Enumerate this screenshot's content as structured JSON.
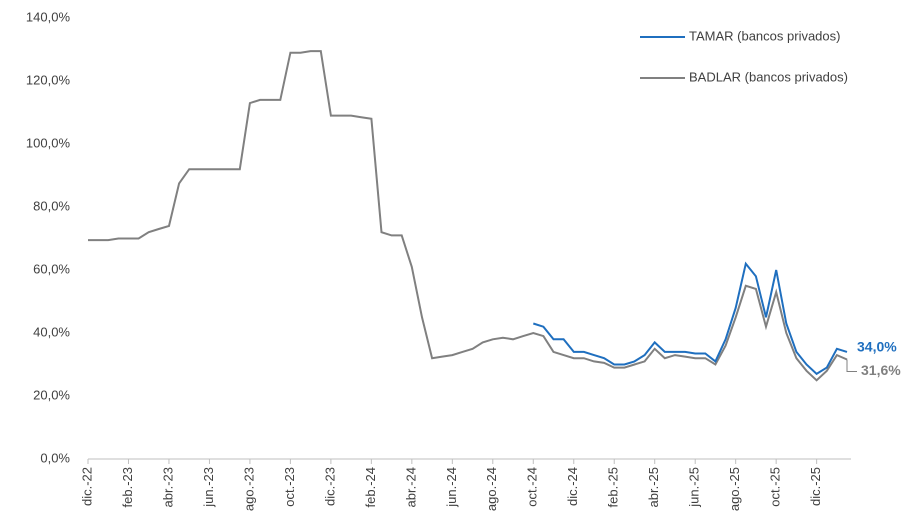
{
  "chart_data": {
    "type": "line",
    "categories": [
      "dic.-22",
      null,
      null,
      null,
      "feb.-23",
      null,
      null,
      null,
      "abr.-23",
      null,
      null,
      null,
      "jun.-23",
      null,
      null,
      null,
      "ago.-23",
      null,
      null,
      null,
      "oct.-23",
      null,
      null,
      null,
      "dic.-23",
      null,
      null,
      null,
      "feb.-24",
      null,
      null,
      null,
      "abr.-24",
      null,
      null,
      null,
      "jun.-24",
      null,
      null,
      null,
      "ago.-24",
      null,
      null,
      null,
      "oct.-24",
      null,
      null,
      null,
      "dic.-24",
      null,
      null,
      null,
      "feb.-25",
      null,
      null,
      null,
      "abr.-25",
      null,
      null,
      null,
      "jun.-25",
      null,
      null,
      null,
      "ago.-25",
      null,
      null,
      null,
      "oct.-25",
      null,
      null,
      null,
      "dic.-25",
      null,
      null,
      null
    ],
    "series": [
      {
        "name": "TAMAR (bancos privados)",
        "color": "#1f6fbf",
        "values": [
          null,
          null,
          null,
          null,
          null,
          null,
          null,
          null,
          null,
          null,
          null,
          null,
          null,
          null,
          null,
          null,
          null,
          null,
          null,
          null,
          null,
          null,
          null,
          null,
          null,
          null,
          null,
          null,
          null,
          null,
          null,
          null,
          null,
          null,
          null,
          null,
          null,
          null,
          null,
          null,
          null,
          null,
          null,
          null,
          43,
          42,
          38,
          38,
          34,
          34,
          33,
          32,
          30,
          30,
          31,
          33,
          37,
          34,
          34,
          34,
          33.5,
          33.5,
          31,
          38,
          48,
          62,
          58,
          45,
          60,
          43,
          34,
          30,
          27,
          29,
          35,
          34
        ],
        "value_labels": [
          null,
          null,
          null,
          null,
          null,
          null,
          null,
          null,
          null,
          null,
          null,
          null,
          null,
          null,
          null,
          null,
          null,
          null,
          null,
          null,
          null,
          null,
          null,
          null,
          null,
          null,
          null,
          null,
          null,
          null,
          null,
          null,
          null,
          null,
          null,
          null,
          null,
          null,
          null,
          null,
          null,
          null,
          null,
          null,
          null,
          null,
          null,
          null,
          null,
          null,
          null,
          null,
          null,
          null,
          null,
          null,
          null,
          null,
          null,
          null,
          null,
          null,
          null,
          null,
          null,
          null,
          null,
          null,
          null,
          null,
          null,
          null,
          null,
          null,
          null,
          "34,0%"
        ]
      },
      {
        "name": "BADLAR (bancos privados)",
        "color": "#808080",
        "values": [
          69.5,
          69.5,
          69.5,
          70,
          70,
          70,
          72,
          73,
          74,
          87.5,
          92,
          92,
          92,
          92,
          92,
          92,
          113,
          114,
          114,
          114,
          129,
          129,
          129.5,
          129.5,
          109,
          109,
          109,
          108.5,
          108,
          72,
          71,
          71,
          61,
          45,
          32,
          32.5,
          33,
          34,
          35,
          37,
          38,
          38.5,
          38,
          39,
          40,
          39,
          34,
          33,
          32,
          32,
          31,
          30.5,
          29,
          29,
          30,
          31,
          35,
          32,
          33,
          32.5,
          32,
          32,
          30,
          36,
          45,
          55,
          54,
          42,
          53,
          40,
          32,
          28,
          25,
          28,
          33,
          31.6
        ],
        "value_labels": [
          null,
          null,
          null,
          null,
          null,
          null,
          null,
          null,
          null,
          null,
          null,
          null,
          null,
          null,
          null,
          null,
          null,
          null,
          null,
          null,
          null,
          null,
          null,
          null,
          null,
          null,
          null,
          null,
          null,
          null,
          null,
          null,
          null,
          null,
          null,
          null,
          null,
          null,
          null,
          null,
          null,
          null,
          null,
          null,
          null,
          null,
          null,
          null,
          null,
          null,
          null,
          null,
          null,
          null,
          null,
          null,
          null,
          null,
          null,
          null,
          null,
          null,
          null,
          null,
          null,
          null,
          null,
          null,
          null,
          null,
          null,
          null,
          null,
          null,
          null,
          "31,6%"
        ]
      }
    ],
    "ylim": [
      0,
      140
    ],
    "yticks": [
      {
        "value": 0,
        "label": "0,0%"
      },
      {
        "value": 20,
        "label": "20,0%"
      },
      {
        "value": 40,
        "label": "40,0%"
      },
      {
        "value": 60,
        "label": "60,0%"
      },
      {
        "value": 80,
        "label": "80,0%"
      },
      {
        "value": 100,
        "label": "100,0%"
      },
      {
        "value": 120,
        "label": "120,0%"
      },
      {
        "value": 140,
        "label": "140,0%"
      }
    ],
    "legend": "top-right"
  }
}
